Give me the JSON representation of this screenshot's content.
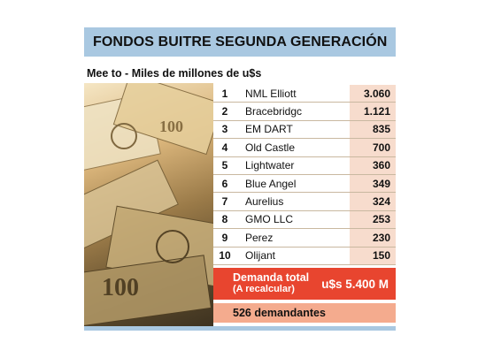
{
  "header": {
    "title": "FONDOS BUITRE SEGUNDA GENERACIÓN"
  },
  "subtitle": "Mee to - Miles de millones de u$s",
  "funds": [
    {
      "rank": "1",
      "name": "NML Elliott",
      "amount": "3.060"
    },
    {
      "rank": "2",
      "name": "Bracebridgc",
      "amount": "1.121"
    },
    {
      "rank": "3",
      "name": "EM DART",
      "amount": "835"
    },
    {
      "rank": "4",
      "name": "Old Castle",
      "amount": "700"
    },
    {
      "rank": "5",
      "name": "Lightwater",
      "amount": "360"
    },
    {
      "rank": "6",
      "name": "Blue Angel",
      "amount": "349"
    },
    {
      "rank": "7",
      "name": "Aurelius",
      "amount": "324"
    },
    {
      "rank": "8",
      "name": "GMO LLC",
      "amount": "253"
    },
    {
      "rank": "9",
      "name": "Perez",
      "amount": "230"
    },
    {
      "rank": "10",
      "name": "Olijant",
      "amount": "150"
    }
  ],
  "total": {
    "label": "Demanda total",
    "note": "(A recalcular)",
    "value": "u$s 5.400 M"
  },
  "claimants": "526 demandantes",
  "colors": {
    "header_bg": "#a9c8e1",
    "amount_bg": "#f7dccd",
    "total_bg": "#e8452f",
    "claimants_bg": "#f4ab8e"
  }
}
